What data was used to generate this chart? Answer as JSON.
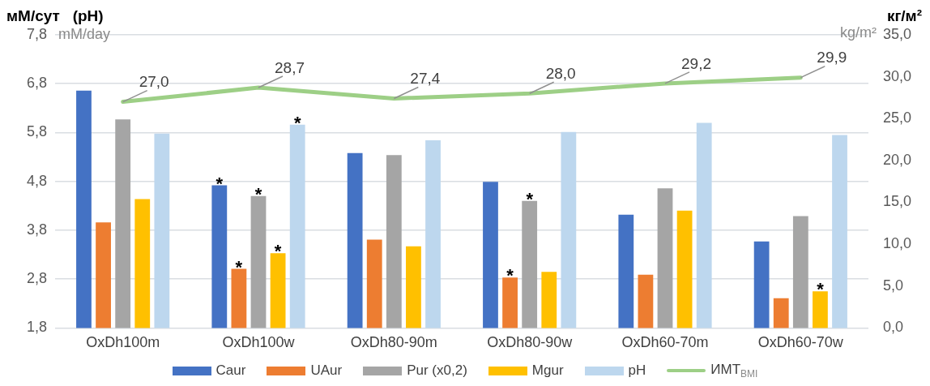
{
  "chart_data": {
    "type": "bar",
    "ylabel": "мМ/сут   (pH)",
    "y2label": "кг/м²",
    "categories": [
      "OxDh100m",
      "OxDh100w",
      "OxDh80-90m",
      "OxDh80-90w",
      "OxDh60-70m",
      "OxDh60-70w"
    ],
    "series": [
      {
        "name": "Caur",
        "color": "#4472c4",
        "values": [
          6.66,
          4.72,
          5.38,
          4.79,
          4.12,
          3.57
        ],
        "value_labels": [
          null,
          "*",
          null,
          null,
          null,
          null
        ]
      },
      {
        "name": "UAur",
        "color": "#ed7d31",
        "values": [
          3.96,
          3.01,
          3.61,
          2.83,
          2.89,
          2.41
        ],
        "value_labels": [
          null,
          "*",
          null,
          "*",
          null,
          null
        ]
      },
      {
        "name": "Pur (x0,2)",
        "color": "#a5a5a5",
        "values": [
          6.07,
          4.5,
          5.34,
          4.4,
          4.66,
          4.09
        ],
        "value_labels": [
          null,
          "*",
          null,
          "*",
          null,
          null
        ]
      },
      {
        "name": "Mgur",
        "color": "#ffc000",
        "values": [
          4.44,
          3.33,
          3.47,
          2.95,
          4.2,
          2.55
        ],
        "value_labels": [
          null,
          "*",
          null,
          null,
          null,
          "*"
        ]
      },
      {
        "name": "pH",
        "color": "#bdd7ee",
        "values": [
          5.78,
          5.96,
          5.64,
          5.81,
          6.0,
          5.75
        ],
        "value_labels": [
          null,
          "*",
          null,
          null,
          null,
          null
        ]
      },
      {
        "name": "ИМТ$_{BMI}$",
        "type": "line",
        "axis": "y2",
        "color": "#9dcf86",
        "values": [
          27.0,
          28.7,
          27.4,
          28.0,
          29.2,
          29.9
        ],
        "value_labels": [
          "27,0",
          "28,7",
          "27,4",
          "28,0",
          "29,2",
          "29,9"
        ]
      }
    ],
    "ylim": [
      1.8,
      7.8
    ],
    "yticks": [
      {
        "value": 1.8,
        "label": "1,8"
      },
      {
        "value": 2.8,
        "label": "2,8"
      },
      {
        "value": 3.8,
        "label": "3,8"
      },
      {
        "value": 4.8,
        "label": "4,8"
      },
      {
        "value": 5.8,
        "label": "5,8"
      },
      {
        "value": 6.8,
        "label": "6,8"
      },
      {
        "value": 7.8,
        "label": "7,8"
      }
    ],
    "y2lim": [
      0,
      35
    ],
    "y2ticks": [
      {
        "value": 0,
        "label": "0,0"
      },
      {
        "value": 5,
        "label": "5,0"
      },
      {
        "value": 10,
        "label": "10,0"
      },
      {
        "value": 15,
        "label": "15,0"
      },
      {
        "value": 20,
        "label": "20,0"
      },
      {
        "value": 25,
        "label": "25,0"
      },
      {
        "value": 30,
        "label": "30,0"
      },
      {
        "value": 35,
        "label": "35,0"
      }
    ],
    "annotations": [
      "mM/day",
      "kg/m²"
    ],
    "grid": "y",
    "legend": "bottom"
  }
}
